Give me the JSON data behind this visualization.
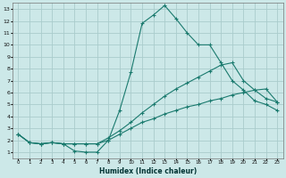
{
  "xlabel": "Humidex (Indice chaleur)",
  "bg_color": "#cce8e8",
  "grid_color": "#aacccc",
  "line_color": "#1a7a6e",
  "xlim": [
    -0.5,
    23.5
  ],
  "ylim": [
    0.5,
    13.5
  ],
  "xticks": [
    0,
    1,
    2,
    3,
    4,
    5,
    6,
    7,
    8,
    9,
    10,
    11,
    12,
    13,
    14,
    15,
    16,
    17,
    18,
    19,
    20,
    21,
    22,
    23
  ],
  "yticks": [
    1,
    2,
    3,
    4,
    5,
    6,
    7,
    8,
    9,
    10,
    11,
    12,
    13
  ],
  "curve1_x": [
    0,
    1,
    2,
    3,
    4,
    5,
    6,
    7,
    8,
    9,
    10,
    11,
    12,
    13,
    14,
    15,
    16,
    17,
    18,
    19,
    20,
    21,
    22,
    23
  ],
  "curve1_y": [
    2.5,
    1.8,
    1.7,
    1.8,
    1.7,
    1.1,
    1.0,
    1.0,
    2.0,
    4.5,
    7.7,
    11.8,
    12.5,
    13.3,
    12.2,
    11.0,
    10.0,
    10.0,
    8.5,
    7.0,
    6.2,
    5.3,
    5.0,
    4.5
  ],
  "curve2_x": [
    0,
    1,
    2,
    3,
    4,
    5,
    6,
    7,
    8,
    9,
    10,
    11,
    12,
    13,
    14,
    15,
    16,
    17,
    18,
    19,
    20,
    21,
    22,
    23
  ],
  "curve2_y": [
    2.5,
    1.8,
    1.7,
    1.8,
    1.7,
    1.7,
    1.7,
    1.7,
    2.2,
    2.8,
    3.5,
    4.3,
    5.0,
    5.7,
    6.3,
    6.8,
    7.3,
    7.8,
    8.3,
    8.5,
    7.0,
    6.2,
    5.5,
    5.2
  ],
  "curve3_x": [
    0,
    1,
    2,
    3,
    4,
    5,
    6,
    7,
    8,
    9,
    10,
    11,
    12,
    13,
    14,
    15,
    16,
    17,
    18,
    19,
    20,
    21,
    22,
    23
  ],
  "curve3_y": [
    2.5,
    1.8,
    1.7,
    1.8,
    1.7,
    1.7,
    1.7,
    1.7,
    2.0,
    2.5,
    3.0,
    3.5,
    3.8,
    4.2,
    4.5,
    4.8,
    5.0,
    5.3,
    5.5,
    5.8,
    6.0,
    6.2,
    6.3,
    5.2
  ]
}
